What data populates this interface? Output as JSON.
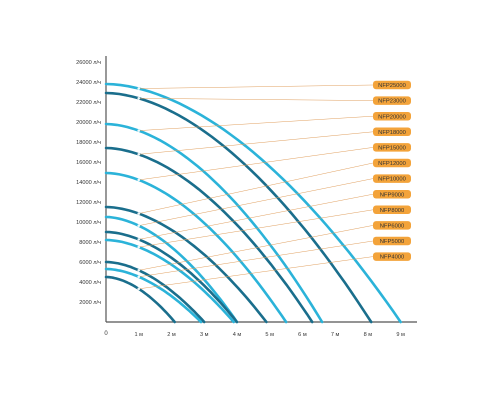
{
  "chart_data": {
    "type": "line",
    "title": "",
    "xlabel": "",
    "ylabel": "",
    "origin_label": "0",
    "xlim": [
      0,
      9.5
    ],
    "ylim": [
      0,
      26000
    ],
    "x_ticks": [
      {
        "value": 1,
        "label": "1 м"
      },
      {
        "value": 2,
        "label": "2 м"
      },
      {
        "value": 3,
        "label": "3 м"
      },
      {
        "value": 4,
        "label": "4 м"
      },
      {
        "value": 5,
        "label": "5 м"
      },
      {
        "value": 6,
        "label": "6 м"
      },
      {
        "value": 7,
        "label": "7 м"
      },
      {
        "value": 8,
        "label": "8 м"
      },
      {
        "value": 9,
        "label": "9 м"
      }
    ],
    "y_ticks": [
      {
        "value": 2000,
        "label": "2000 л/ч"
      },
      {
        "value": 4000,
        "label": "4000 л/ч"
      },
      {
        "value": 6000,
        "label": "6000 л/ч"
      },
      {
        "value": 8000,
        "label": "8000 л/ч"
      },
      {
        "value": 10000,
        "label": "10000 л/ч"
      },
      {
        "value": 12000,
        "label": "12000 л/ч"
      },
      {
        "value": 14000,
        "label": "14000 л/ч"
      },
      {
        "value": 16000,
        "label": "16000 л/ч"
      },
      {
        "value": 18000,
        "label": "18000 л/ч"
      },
      {
        "value": 20000,
        "label": "20000 л/ч"
      },
      {
        "value": 22000,
        "label": "22000 л/ч"
      },
      {
        "value": 24000,
        "label": "24000 л/ч"
      },
      {
        "value": 26000,
        "label": "26000 л/ч"
      }
    ],
    "grid": false,
    "legend_position": "right",
    "series": [
      {
        "name": "NFP25000",
        "color": "#2bb3d9",
        "max_flow": 23800,
        "max_head": 9.0
      },
      {
        "name": "NFP23000",
        "color": "#1a6e8c",
        "max_flow": 22900,
        "max_head": 8.1
      },
      {
        "name": "NFP20000",
        "color": "#2bb3d9",
        "max_flow": 19800,
        "max_head": 6.6
      },
      {
        "name": "NFP18000",
        "color": "#1a6e8c",
        "max_flow": 17400,
        "max_head": 6.3
      },
      {
        "name": "NFP15000",
        "color": "#2bb3d9",
        "max_flow": 14900,
        "max_head": 5.5
      },
      {
        "name": "NFP12000",
        "color": "#1a6e8c",
        "max_flow": 11500,
        "max_head": 4.9
      },
      {
        "name": "NFP10000",
        "color": "#2bb3d9",
        "max_flow": 10500,
        "max_head": 4.0
      },
      {
        "name": "NFP9000",
        "color": "#1a6e8c",
        "max_flow": 9000,
        "max_head": 4.0
      },
      {
        "name": "NFP8000",
        "color": "#2bb3d9",
        "max_flow": 8200,
        "max_head": 3.9
      },
      {
        "name": "NFP6000",
        "color": "#1a6e8c",
        "max_flow": 6000,
        "max_head": 3.0
      },
      {
        "name": "NFP5000",
        "color": "#2bb3d9",
        "max_flow": 5300,
        "max_head": 2.9
      },
      {
        "name": "NFP4000",
        "color": "#1a6e8c",
        "max_flow": 4500,
        "max_head": 2.1
      }
    ],
    "colors": {
      "label_bg": "#f3a33a",
      "axis": "#555555",
      "leader": "#e0a060",
      "text": "#333333"
    }
  }
}
